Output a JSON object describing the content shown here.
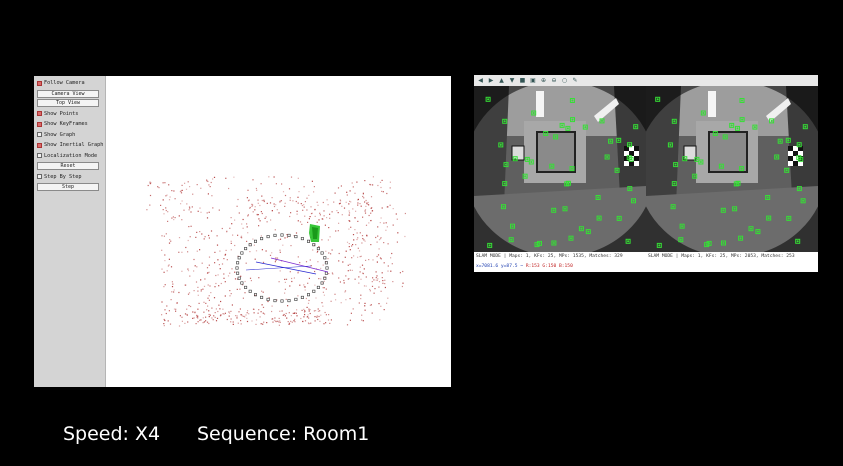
{
  "panel": {
    "follow_camera": "Follow Camera",
    "camera_view": "Camera View",
    "top_view": "Top View",
    "show_points": "Show Points",
    "show_keyframes": "Show KeyFrames",
    "show_graph": "Show Graph",
    "show_inertial_graph": "Show Inertial Graph",
    "localization_mode": "Localization Mode",
    "reset": "Reset",
    "step_by_step": "Step By Step",
    "step": "Step",
    "checked": {
      "follow_camera": true,
      "show_points": true,
      "show_keyframes": true,
      "show_graph": false,
      "show_inertial_graph": true,
      "localization_mode": false,
      "step_by_step": false
    }
  },
  "image_viewer": {
    "toolbar_icons": [
      "arrow-left-icon",
      "arrow-right-icon",
      "arrow-up-icon",
      "arrow-down-icon",
      "save-icon",
      "zoom-icon",
      "zoom-in-icon",
      "zoom-out-icon",
      "magnifier-icon",
      "edit-icon"
    ],
    "left_status": "SLAM MODE | Maps: 1, KFs: 25, MPs: 1535, Matches: 329",
    "right_status": "SLAM MODE | Maps: 1, KFs: 25, MPs: 2053, Matches: 253",
    "subline_a": "x=7081.6 y=87.5 ~",
    "subline_b": "R:153 G:150 B:150"
  },
  "caption": {
    "speed": "Speed: X4",
    "sequence": "Sequence: Room1"
  },
  "colors": {
    "map_points": "#b23a3a",
    "keyframes": "#2a2ad0",
    "camera": "#22c022",
    "features": "#35e035"
  }
}
